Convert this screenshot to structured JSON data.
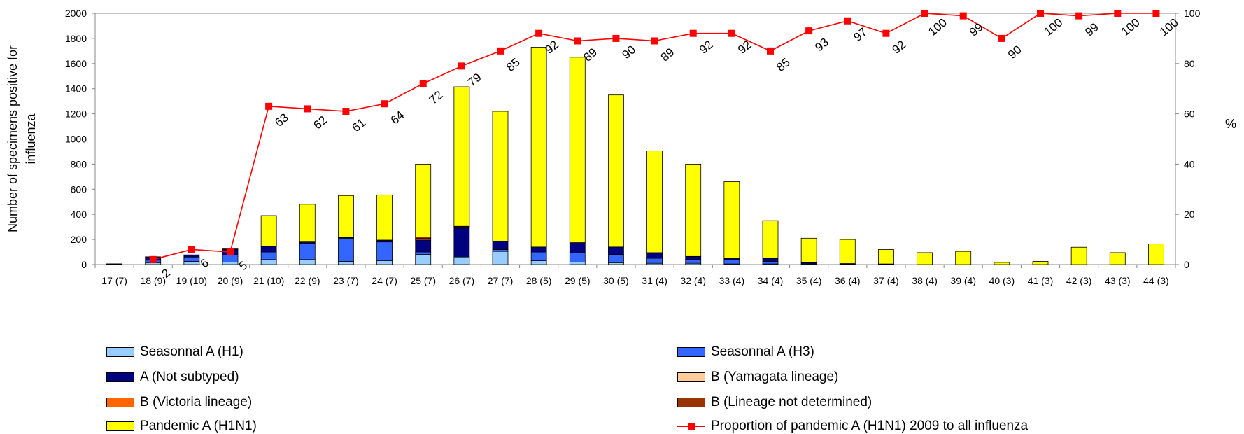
{
  "chart_data": {
    "type": "bar",
    "stacked": true,
    "categories": [
      "17 (7)",
      "18 (9)",
      "19 (10)",
      "20 (9)",
      "21 (10)",
      "22 (9)",
      "23 (7)",
      "24 (7)",
      "25 (7)",
      "26 (7)",
      "27 (7)",
      "28 (5)",
      "29 (5)",
      "30 (5)",
      "31 (4)",
      "32 (4)",
      "33 (4)",
      "34 (4)",
      "35 (4)",
      "36 (4)",
      "37 (4)",
      "38 (4)",
      "39 (4)",
      "40 (3)",
      "41 (3)",
      "42 (3)",
      "43 (3)",
      "44 (3)"
    ],
    "ylabel": "Number of specimens positive for influenza",
    "ylim": [
      0,
      2000
    ],
    "yticks": [
      0,
      200,
      400,
      600,
      800,
      1000,
      1200,
      1400,
      1600,
      1800,
      2000
    ],
    "y2label": "%",
    "y2lim": [
      0,
      100
    ],
    "y2ticks": [
      0,
      20,
      40,
      60,
      80,
      100
    ],
    "grid": false,
    "legend_position": "bottom",
    "series": [
      {
        "name": "Seasonnal A (H1)",
        "color": "#99ccff",
        "values": [
          2,
          15,
          25,
          20,
          40,
          40,
          25,
          30,
          80,
          55,
          105,
          30,
          20,
          15,
          10,
          10,
          5,
          5,
          0,
          0,
          0,
          0,
          0,
          0,
          0,
          0,
          0,
          0
        ]
      },
      {
        "name": "Seasonnal A (H3)",
        "color": "#3366ff",
        "values": [
          2,
          20,
          35,
          55,
          60,
          130,
          185,
          150,
          20,
          10,
          15,
          70,
          75,
          65,
          40,
          30,
          35,
          20,
          5,
          3,
          2,
          0,
          0,
          0,
          0,
          0,
          0,
          0
        ]
      },
      {
        "name": "A (Not subtyped)",
        "color": "#000080",
        "values": [
          2,
          25,
          15,
          45,
          45,
          10,
          5,
          15,
          95,
          225,
          65,
          40,
          80,
          60,
          45,
          25,
          10,
          25,
          10,
          5,
          3,
          0,
          0,
          0,
          0,
          0,
          0,
          0
        ]
      },
      {
        "name": "B (Yamagata lineage)",
        "color": "#ffcc99",
        "values": [
          0,
          0,
          0,
          0,
          0,
          0,
          0,
          0,
          0,
          5,
          0,
          0,
          0,
          0,
          0,
          0,
          0,
          0,
          0,
          0,
          0,
          0,
          0,
          0,
          0,
          0,
          0,
          0
        ]
      },
      {
        "name": "B (Victoria lineage)",
        "color": "#ff6600",
        "values": [
          0,
          0,
          0,
          0,
          0,
          0,
          0,
          0,
          15,
          5,
          0,
          0,
          0,
          0,
          0,
          0,
          0,
          0,
          0,
          0,
          0,
          0,
          0,
          0,
          0,
          0,
          0,
          0
        ]
      },
      {
        "name": "B (Lineage not determined)",
        "color": "#993300",
        "values": [
          0,
          0,
          0,
          0,
          0,
          0,
          0,
          0,
          10,
          5,
          0,
          0,
          0,
          0,
          0,
          0,
          0,
          0,
          0,
          0,
          0,
          0,
          0,
          0,
          0,
          0,
          0,
          0
        ]
      },
      {
        "name": "Pandemic A (H1N1)",
        "color": "#ffff00",
        "values": [
          0,
          2,
          2,
          5,
          245,
          300,
          335,
          360,
          580,
          1110,
          1035,
          1590,
          1475,
          1210,
          810,
          735,
          610,
          300,
          195,
          192,
          115,
          95,
          105,
          17,
          25,
          138,
          95,
          165
        ]
      }
    ],
    "line_series": {
      "name": "Proportion of pandemic A (H1N1) 2009 to all influenza",
      "color": "#ff0000",
      "axis": "right",
      "values": [
        null,
        2,
        6,
        5,
        63,
        62,
        61,
        64,
        72,
        79,
        85,
        92,
        89,
        90,
        89,
        92,
        92,
        85,
        93,
        97,
        92,
        100,
        99,
        90,
        100,
        99,
        100,
        100
      ],
      "labels": [
        "",
        "2",
        "6",
        "5",
        "63",
        "62",
        "61",
        "64",
        "72",
        "79",
        "85",
        "92",
        "89",
        "90",
        "89",
        "92",
        "92",
        "85",
        "93",
        "97",
        "92",
        "100",
        "99",
        "90",
        "100",
        "99",
        "100",
        "100"
      ]
    }
  },
  "legend": {
    "items": [
      {
        "label": "Seasonnal A (H1)",
        "color": "#99ccff",
        "kind": "box"
      },
      {
        "label": "Seasonnal A (H3)",
        "color": "#3366ff",
        "kind": "box"
      },
      {
        "label": "A (Not subtyped)",
        "color": "#000080",
        "kind": "box"
      },
      {
        "label": "B (Yamagata lineage)",
        "color": "#ffcc99",
        "kind": "box"
      },
      {
        "label": "B (Victoria lineage)",
        "color": "#ff6600",
        "kind": "box"
      },
      {
        "label": "B (Lineage not determined)",
        "color": "#993300",
        "kind": "box"
      },
      {
        "label": "Pandemic A (H1N1)",
        "color": "#ffff00",
        "kind": "box"
      },
      {
        "label": "Proportion of pandemic A (H1N1) 2009 to all influenza",
        "color": "#ff0000",
        "kind": "line"
      }
    ]
  }
}
